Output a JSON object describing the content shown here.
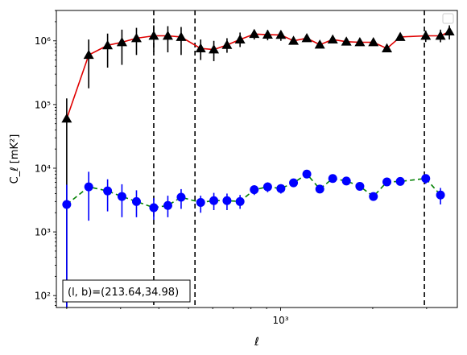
{
  "chart_data": {
    "type": "scatter",
    "title": "",
    "xlabel": "ℓ",
    "ylabel": "C_ℓ  [mK²]",
    "xscale": "log",
    "yscale": "log",
    "xlim": [
      185,
      3780
    ],
    "ylim": [
      65,
      3000000
    ],
    "x_tick_major_labels": [
      {
        "value": 1000,
        "label": "10³"
      }
    ],
    "y_tick_major_labels": [
      {
        "value": 100,
        "label": "10²"
      },
      {
        "value": 1000,
        "label": "10³"
      },
      {
        "value": 10000,
        "label": "10⁴"
      },
      {
        "value": 100000,
        "label": "10⁵"
      },
      {
        "value": 1000000,
        "label": "10⁶"
      }
    ],
    "legend": {
      "placement": "top-right",
      "entries": []
    },
    "annotation": "(l, b)=(213.64,34.98)",
    "vlines": [
      385,
      525,
      2950
    ],
    "series": [
      {
        "marker": "triangle",
        "marker_color": "#000000",
        "line_color": "#e00000",
        "line_style": "solid",
        "error_color": "#000000",
        "points": [
          {
            "x": 200,
            "y": 60000,
            "lo": 0,
            "hi": 125000
          },
          {
            "x": 236,
            "y": 600000,
            "lo": 180000,
            "hi": 1050000
          },
          {
            "x": 272,
            "y": 850000,
            "lo": 380000,
            "hi": 1300000
          },
          {
            "x": 303,
            "y": 950000,
            "lo": 420000,
            "hi": 1500000
          },
          {
            "x": 338,
            "y": 1100000,
            "lo": 600000,
            "hi": 1600000
          },
          {
            "x": 385,
            "y": 1200000,
            "lo": 680000,
            "hi": 1750000
          },
          {
            "x": 428,
            "y": 1200000,
            "lo": 660000,
            "hi": 1700000
          },
          {
            "x": 473,
            "y": 1150000,
            "lo": 600000,
            "hi": 1650000
          },
          {
            "x": 548,
            "y": 760000,
            "lo": 500000,
            "hi": 1050000
          },
          {
            "x": 605,
            "y": 730000,
            "lo": 480000,
            "hi": 1000000
          },
          {
            "x": 668,
            "y": 860000,
            "lo": 650000,
            "hi": 1100000
          },
          {
            "x": 737,
            "y": 1050000,
            "lo": 800000,
            "hi": 1350000
          },
          {
            "x": 820,
            "y": 1280000,
            "lo": 1050000,
            "hi": 1500000
          },
          {
            "x": 907,
            "y": 1250000,
            "lo": 1020000,
            "hi": 1480000
          },
          {
            "x": 1002,
            "y": 1240000,
            "lo": 1000000,
            "hi": 1450000
          },
          {
            "x": 1102,
            "y": 1000000,
            "lo": 900000,
            "hi": 1150000
          },
          {
            "x": 1218,
            "y": 1100000,
            "lo": 1000000,
            "hi": 1250000
          },
          {
            "x": 1343,
            "y": 870000,
            "lo": 800000,
            "hi": 950000
          },
          {
            "x": 1480,
            "y": 1050000,
            "lo": 960000,
            "hi": 1150000
          },
          {
            "x": 1640,
            "y": 970000,
            "lo": 890000,
            "hi": 1060000
          },
          {
            "x": 1815,
            "y": 950000,
            "lo": 870000,
            "hi": 1030000
          },
          {
            "x": 2010,
            "y": 950000,
            "lo": 870000,
            "hi": 1030000
          },
          {
            "x": 2225,
            "y": 760000,
            "lo": 690000,
            "hi": 830000
          },
          {
            "x": 2460,
            "y": 1150000,
            "lo": 1040000,
            "hi": 1250000
          },
          {
            "x": 2980,
            "y": 1200000,
            "lo": 960000,
            "hi": 1450000
          },
          {
            "x": 3330,
            "y": 1200000,
            "lo": 950000,
            "hi": 1500000
          },
          {
            "x": 3560,
            "y": 1400000,
            "lo": 1050000,
            "hi": 1750000
          }
        ]
      },
      {
        "marker": "circle",
        "marker_color": "#0000ff",
        "line_color": "#008000",
        "line_style": "dashed",
        "error_color": "#0000ff",
        "points": [
          {
            "x": 200,
            "y": 2700,
            "lo": 0,
            "hi": 5500
          },
          {
            "x": 236,
            "y": 5100,
            "lo": 1500,
            "hi": 8800
          },
          {
            "x": 272,
            "y": 4400,
            "lo": 2100,
            "hi": 6700
          },
          {
            "x": 303,
            "y": 3600,
            "lo": 1700,
            "hi": 5600
          },
          {
            "x": 338,
            "y": 3000,
            "lo": 1700,
            "hi": 4500
          },
          {
            "x": 385,
            "y": 2400,
            "lo": 1550,
            "hi": 3400
          },
          {
            "x": 428,
            "y": 2600,
            "lo": 1700,
            "hi": 3700
          },
          {
            "x": 473,
            "y": 3500,
            "lo": 2300,
            "hi": 4700
          },
          {
            "x": 548,
            "y": 2900,
            "lo": 2000,
            "hi": 3700
          },
          {
            "x": 605,
            "y": 3100,
            "lo": 2200,
            "hi": 4100
          },
          {
            "x": 668,
            "y": 3100,
            "lo": 2200,
            "hi": 4000
          },
          {
            "x": 737,
            "y": 3000,
            "lo": 2300,
            "hi": 3800
          },
          {
            "x": 820,
            "y": 4600,
            "lo": 3800,
            "hi": 5400
          },
          {
            "x": 907,
            "y": 5100,
            "lo": 4200,
            "hi": 6000
          },
          {
            "x": 1002,
            "y": 4800,
            "lo": 4000,
            "hi": 5600
          },
          {
            "x": 1102,
            "y": 5900,
            "lo": 5100,
            "hi": 6700
          },
          {
            "x": 1218,
            "y": 8100,
            "lo": 7000,
            "hi": 9300
          },
          {
            "x": 1343,
            "y": 4700,
            "lo": 4200,
            "hi": 5200
          },
          {
            "x": 1480,
            "y": 6900,
            "lo": 6200,
            "hi": 7600
          },
          {
            "x": 1640,
            "y": 6300,
            "lo": 5700,
            "hi": 6900
          },
          {
            "x": 1815,
            "y": 5200,
            "lo": 4700,
            "hi": 5700
          },
          {
            "x": 2010,
            "y": 3600,
            "lo": 3200,
            "hi": 4000
          },
          {
            "x": 2225,
            "y": 6100,
            "lo": 5300,
            "hi": 6900
          },
          {
            "x": 2460,
            "y": 6200,
            "lo": 5500,
            "hi": 6900
          },
          {
            "x": 2980,
            "y": 6900,
            "lo": 5700,
            "hi": 8000
          },
          {
            "x": 3330,
            "y": 3800,
            "lo": 2700,
            "hi": 4900
          }
        ]
      }
    ]
  }
}
